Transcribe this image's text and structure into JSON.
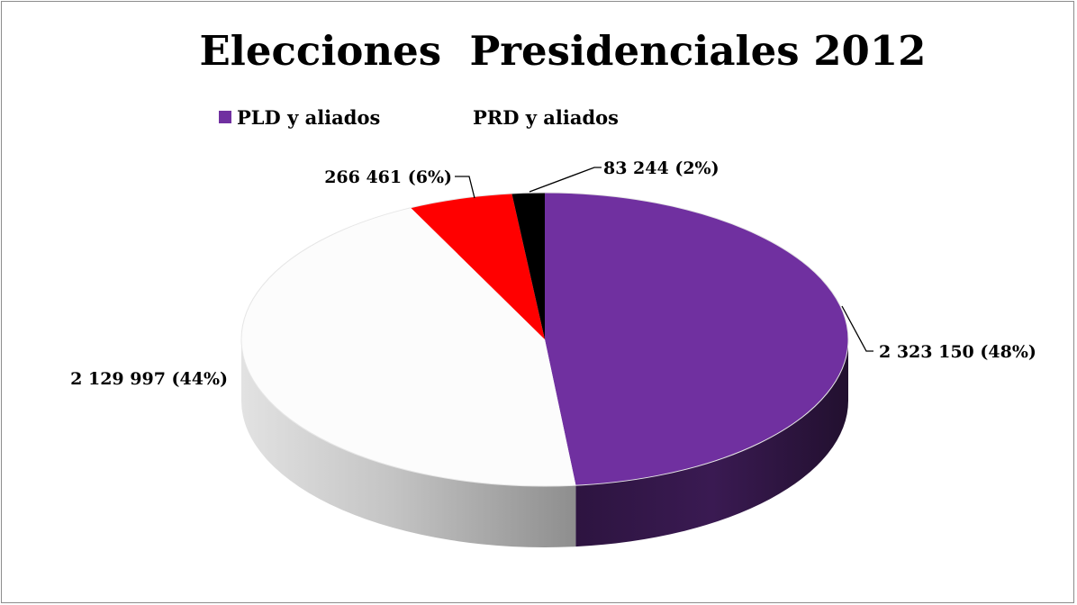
{
  "chart_data": {
    "type": "pie",
    "title": "Elecciones  Presidenciales 2012",
    "legend_position": "top",
    "legend": [
      {
        "name": "PLD y aliados",
        "color": "#7030a0"
      },
      {
        "name": "PRD y aliados",
        "color": "#ffffff"
      }
    ],
    "slices": [
      {
        "value": 2323150,
        "label": "2 323 150 (48%)",
        "color": "#7030a0"
      },
      {
        "value": 2129997,
        "label": "2 129 997 (44%)",
        "color": "#fcfcfc"
      },
      {
        "value": 266461,
        "label": "266 461 (6%)",
        "color": "#ff0000"
      },
      {
        "value": 83244,
        "label": "83 244 (2%)",
        "color": "#000000"
      }
    ]
  }
}
